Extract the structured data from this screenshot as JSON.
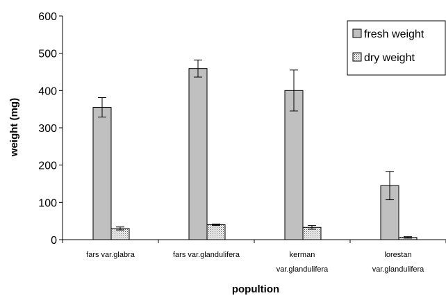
{
  "chart_data": {
    "type": "bar",
    "categories": [
      [
        "fars var.glabra"
      ],
      [
        "fars var.glandulifera"
      ],
      [
        "kerman",
        "var.glandulifera"
      ],
      [
        "lorestan",
        "var.glandulifera"
      ]
    ],
    "series": [
      {
        "name": "fresh weight",
        "values": [
          355,
          459,
          400,
          145
        ],
        "errors": [
          26,
          23,
          55,
          38
        ],
        "color": "#c0c0c0",
        "pattern": "solid"
      },
      {
        "name": "dry weight",
        "values": [
          30,
          40,
          33,
          6
        ],
        "errors": [
          4,
          2,
          5,
          2
        ],
        "color": "#e6e6e6",
        "pattern": "dots"
      }
    ],
    "xlabel": "popultion",
    "ylabel": "weight (mg)",
    "ylim": [
      0,
      600
    ],
    "yticks": [
      0,
      100,
      200,
      300,
      400,
      500,
      600
    ],
    "grid": false,
    "legend": "top-right"
  }
}
